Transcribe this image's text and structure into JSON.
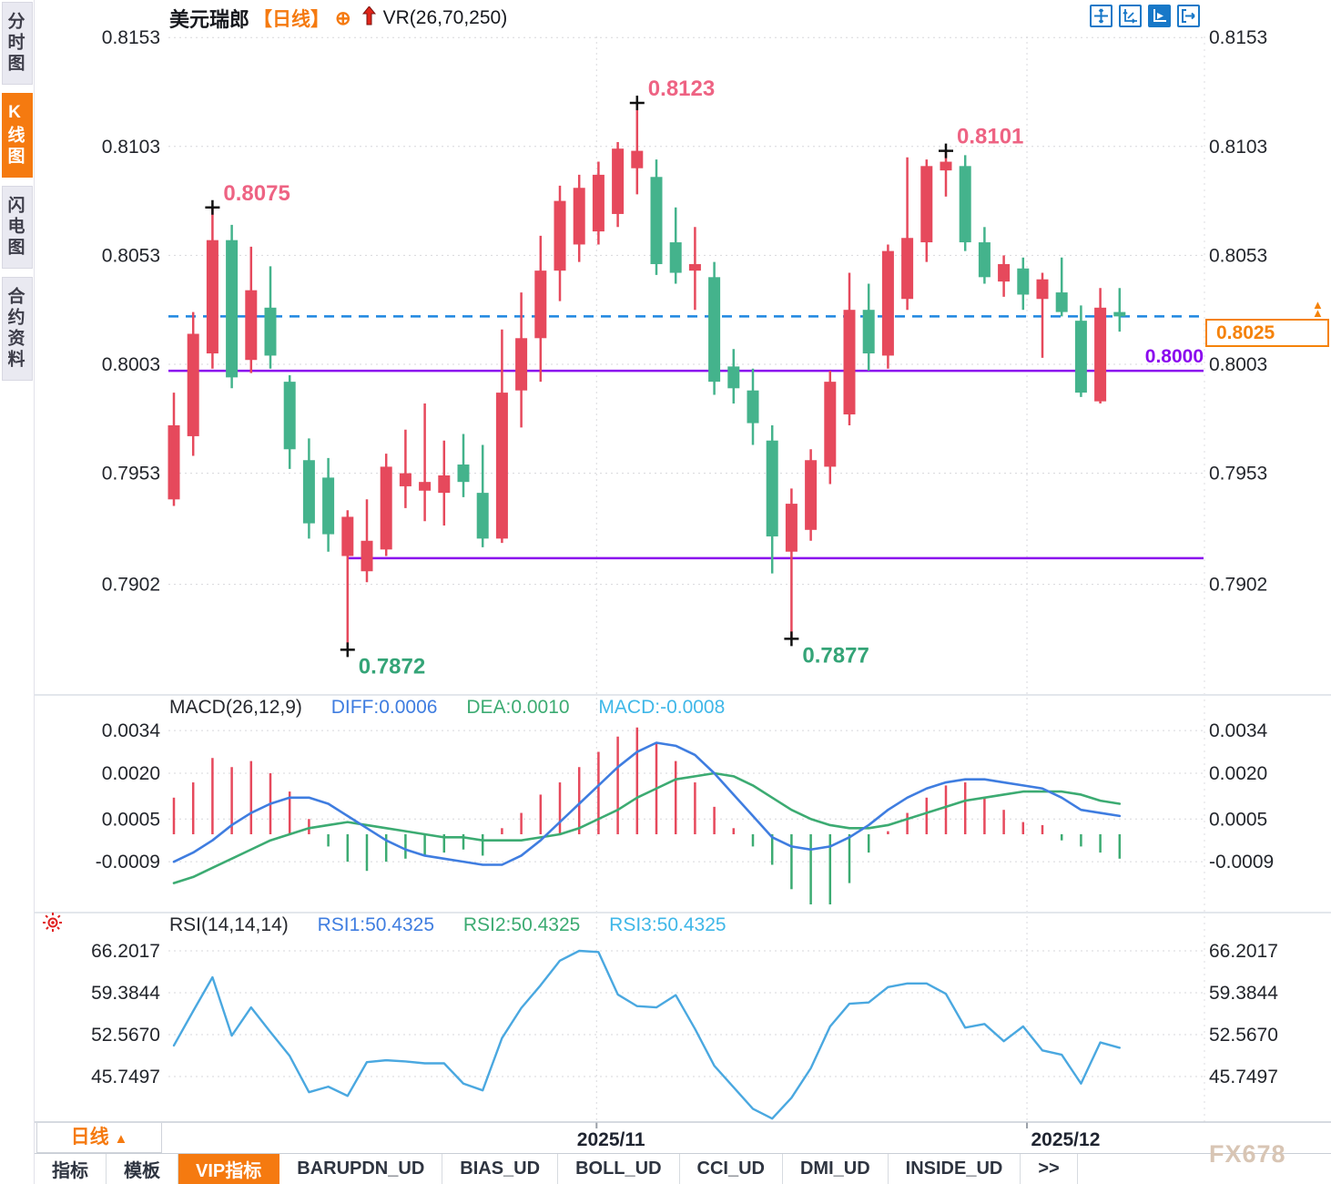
{
  "app": {
    "symbol": "美元瑞郎",
    "period_tag": "【日线】",
    "overlay_indicator": "VR(26,70,250)"
  },
  "sidebar": {
    "items": [
      {
        "label": "分时图",
        "active": false
      },
      {
        "label": "K线图",
        "active": true
      },
      {
        "label": "闪电图",
        "active": false
      },
      {
        "label": "合约资料",
        "active": false
      }
    ]
  },
  "toolbar_icons": [
    {
      "name": "crosshair-move-icon",
      "active": false
    },
    {
      "name": "axis-scale-icon",
      "active": false
    },
    {
      "name": "axis-play-icon",
      "active": true
    },
    {
      "name": "goto-latest-icon",
      "active": false
    }
  ],
  "colors": {
    "up": "#e6495c",
    "down": "#44b38c",
    "current_line": "#1e86e0",
    "support": "#8a06ee",
    "accent_orange": "#f5820a",
    "macd_diff": "#3f7de0",
    "macd_dea": "#3cab72",
    "macd_hist_pos": "#e6495c",
    "macd_hist_neg": "#3cab72",
    "rsi_line": "#4aa8e0",
    "axis_text": "#23262c",
    "high_label": "#ee6383",
    "low_label": "#34a477"
  },
  "chart_data": {
    "type": "candlestick",
    "title": "美元瑞郎 日线 (USD/CHF daily)",
    "main": {
      "y_axis_labels": [
        "0.8153",
        "0.8103",
        "0.8053",
        "0.8003",
        "0.7953",
        "0.7902"
      ],
      "y_axis_values": [
        0.8153,
        0.8103,
        0.8053,
        0.8003,
        0.7953,
        0.7902
      ],
      "ohlc": [
        [
          0.7941,
          0.799,
          0.7938,
          0.7975
        ],
        [
          0.797,
          0.8027,
          0.7961,
          0.8017
        ],
        [
          0.8008,
          0.8075,
          0.8001,
          0.806
        ],
        [
          0.806,
          0.8067,
          0.7992,
          0.7997
        ],
        [
          0.8005,
          0.8057,
          0.7999,
          0.8037
        ],
        [
          0.8029,
          0.8048,
          0.8001,
          0.8007
        ],
        [
          0.7995,
          0.7998,
          0.7955,
          0.7964
        ],
        [
          0.7959,
          0.7969,
          0.7923,
          0.793
        ],
        [
          0.7951,
          0.796,
          0.7917,
          0.7925
        ],
        [
          0.7915,
          0.7936,
          0.7872,
          0.7933
        ],
        [
          0.7908,
          0.7941,
          0.7903,
          0.7922
        ],
        [
          0.7918,
          0.7962,
          0.7915,
          0.7956
        ],
        [
          0.7947,
          0.7973,
          0.7937,
          0.7953
        ],
        [
          0.7945,
          0.7985,
          0.7931,
          0.7949
        ],
        [
          0.7944,
          0.7968,
          0.7929,
          0.7952
        ],
        [
          0.7957,
          0.7971,
          0.7942,
          0.7949
        ],
        [
          0.7944,
          0.7966,
          0.7919,
          0.7923
        ],
        [
          0.7923,
          0.8019,
          0.7921,
          0.799
        ],
        [
          0.7991,
          0.8036,
          0.7974,
          0.8015
        ],
        [
          0.8015,
          0.8062,
          0.7995,
          0.8046
        ],
        [
          0.8046,
          0.8085,
          0.8032,
          0.8078
        ],
        [
          0.8058,
          0.809,
          0.805,
          0.8084
        ],
        [
          0.8064,
          0.8096,
          0.8058,
          0.809
        ],
        [
          0.8072,
          0.8105,
          0.8066,
          0.8102
        ],
        [
          0.8093,
          0.8123,
          0.8081,
          0.8101
        ],
        [
          0.8089,
          0.8097,
          0.8044,
          0.8049
        ],
        [
          0.8059,
          0.8075,
          0.804,
          0.8045
        ],
        [
          0.8046,
          0.8066,
          0.8028,
          0.8049
        ],
        [
          0.8043,
          0.805,
          0.7989,
          0.7995
        ],
        [
          0.8002,
          0.801,
          0.7985,
          0.7992
        ],
        [
          0.7991,
          0.8001,
          0.7966,
          0.7976
        ],
        [
          0.7968,
          0.7975,
          0.7907,
          0.7924
        ],
        [
          0.7917,
          0.7946,
          0.7877,
          0.7939
        ],
        [
          0.7927,
          0.7964,
          0.7922,
          0.7959
        ],
        [
          0.7956,
          0.8,
          0.7948,
          0.7995
        ],
        [
          0.798,
          0.8045,
          0.7975,
          0.8028
        ],
        [
          0.8028,
          0.804,
          0.8,
          0.8008
        ],
        [
          0.8007,
          0.8058,
          0.8001,
          0.8055
        ],
        [
          0.8033,
          0.8098,
          0.8028,
          0.8061
        ],
        [
          0.8059,
          0.8097,
          0.805,
          0.8094
        ],
        [
          0.8092,
          0.8101,
          0.808,
          0.8096
        ],
        [
          0.8094,
          0.8099,
          0.8055,
          0.8059
        ],
        [
          0.8059,
          0.8066,
          0.804,
          0.8043
        ],
        [
          0.8041,
          0.8053,
          0.8034,
          0.8049
        ],
        [
          0.8047,
          0.8052,
          0.8028,
          0.8035
        ],
        [
          0.8033,
          0.8045,
          0.8006,
          0.8042
        ],
        [
          0.8036,
          0.8052,
          0.8025,
          0.8027
        ],
        [
          0.8023,
          0.803,
          0.7988,
          0.799
        ],
        [
          0.7986,
          0.8038,
          0.7985,
          0.8029
        ],
        [
          0.8027,
          0.8038,
          0.8018,
          0.8025
        ]
      ],
      "annotations": {
        "highs": [
          {
            "index": 2,
            "label": "0.8075",
            "value": 0.8075
          },
          {
            "index": 24,
            "label": "0.8123",
            "value": 0.8123
          },
          {
            "index": 40,
            "label": "0.8101",
            "value": 0.8101
          }
        ],
        "lows": [
          {
            "index": 9,
            "label": "0.7872",
            "value": 0.7872
          },
          {
            "index": 32,
            "label": "0.7877",
            "value": 0.7877
          }
        ]
      },
      "lines": {
        "current_price": {
          "value": 0.8025,
          "label": "0.8025",
          "style": "dashed-blue"
        },
        "support1": {
          "value": 0.8,
          "label": "0.8000",
          "style": "solid-purple",
          "from_index": 0
        },
        "support2": {
          "value": 0.7914,
          "label": "",
          "style": "solid-purple",
          "from_index": 9
        }
      },
      "axis_close_label": "0.8003"
    },
    "macd": {
      "title": "MACD(26,12,9)",
      "diff_label": "DIFF:0.0006",
      "dea_label": "DEA:0.0010",
      "macd_label": "MACD:-0.0008",
      "y_axis_labels": [
        "0.0034",
        "0.0020",
        "0.0005",
        "-0.0009"
      ],
      "y_axis_values": [
        0.0034,
        0.002,
        0.0005,
        -0.0009
      ],
      "hist": [
        0.0012,
        0.0017,
        0.0025,
        0.0022,
        0.0024,
        0.002,
        0.0014,
        0.0005,
        -0.0004,
        -0.0009,
        -0.0012,
        -0.0009,
        -0.0008,
        -0.0007,
        -0.0006,
        -0.0005,
        -0.0007,
        0.0002,
        0.0007,
        0.0013,
        0.0017,
        0.0022,
        0.0027,
        0.0032,
        0.0035,
        0.003,
        0.0024,
        0.0017,
        0.0009,
        0.0002,
        -0.0004,
        -0.001,
        -0.0018,
        -0.0023,
        -0.0023,
        -0.0016,
        -0.0006,
        0.0001,
        0.0007,
        0.0012,
        0.0016,
        0.0017,
        0.0012,
        0.0008,
        0.0004,
        0.0003,
        -0.0002,
        -0.0004,
        -0.0006,
        -0.0008
      ],
      "diff": [
        -0.0009,
        -0.0006,
        -0.0002,
        0.0003,
        0.0007,
        0.001,
        0.0012,
        0.0012,
        0.001,
        0.0006,
        0.0002,
        -0.0002,
        -0.0005,
        -0.0007,
        -0.0008,
        -0.0009,
        -0.001,
        -0.001,
        -0.0007,
        -0.0002,
        0.0004,
        0.001,
        0.0016,
        0.0022,
        0.0027,
        0.003,
        0.0029,
        0.0026,
        0.002,
        0.0013,
        0.0006,
        -0.0001,
        -0.0004,
        -0.0005,
        -0.0004,
        -0.0001,
        0.0003,
        0.0008,
        0.0012,
        0.0015,
        0.0017,
        0.0018,
        0.0018,
        0.0017,
        0.0016,
        0.0015,
        0.0012,
        0.0008,
        0.0007,
        0.0006
      ],
      "dea": [
        -0.0016,
        -0.0014,
        -0.0011,
        -0.0008,
        -0.0005,
        -0.0002,
        0.0,
        0.0002,
        0.0003,
        0.0004,
        0.0003,
        0.0002,
        0.0001,
        0.0,
        -0.0001,
        -0.0001,
        -0.0002,
        -0.0002,
        -0.0002,
        -0.0001,
        0.0,
        0.0002,
        0.0005,
        0.0008,
        0.0012,
        0.0015,
        0.0018,
        0.0019,
        0.002,
        0.0019,
        0.0016,
        0.0012,
        0.0008,
        0.0005,
        0.0003,
        0.0002,
        0.0002,
        0.0003,
        0.0005,
        0.0007,
        0.0009,
        0.0011,
        0.0012,
        0.0013,
        0.0014,
        0.0014,
        0.0014,
        0.0013,
        0.0011,
        0.001
      ]
    },
    "rsi": {
      "title": "RSI(14,14,14)",
      "rsi1_label": "RSI1:50.4325",
      "rsi2_label": "RSI2:50.4325",
      "rsi3_label": "RSI3:50.4325",
      "y_axis_labels": [
        "66.2017",
        "59.3844",
        "52.5670",
        "45.7497"
      ],
      "y_axis_values": [
        66.2017,
        59.3844,
        52.567,
        45.7497
      ],
      "values": [
        50.8,
        56.4,
        61.9,
        52.4,
        57.0,
        53.0,
        49.1,
        43.2,
        44.1,
        42.6,
        48.1,
        48.4,
        48.2,
        47.9,
        47.9,
        44.6,
        43.5,
        52.0,
        56.9,
        60.6,
        64.6,
        66.2,
        66.0,
        59.1,
        57.2,
        57.0,
        59.0,
        53.5,
        47.5,
        44.0,
        40.5,
        38.9,
        42.3,
        47.1,
        53.9,
        57.6,
        57.8,
        60.3,
        60.9,
        60.9,
        59.2,
        53.7,
        54.3,
        51.5,
        53.9,
        50.0,
        49.3,
        44.6,
        51.3,
        50.43
      ]
    },
    "x_axis": {
      "months": [
        {
          "label": "2025/11",
          "grid_index": 21.9,
          "label_index": 22.65
        },
        {
          "label": "2025/12",
          "grid_index": 44.2,
          "label_index": 46.2
        }
      ]
    },
    "legend_position": "top-left",
    "grid": true
  },
  "bottom": {
    "period_button": "日线",
    "period_tri": "▲",
    "tabs": [
      {
        "label": "指标",
        "active": false
      },
      {
        "label": "模板",
        "active": false
      },
      {
        "label": "VIP指标",
        "active": true
      },
      {
        "label": "BARUPDN_UD",
        "active": false
      },
      {
        "label": "BIAS_UD",
        "active": false
      },
      {
        "label": "BOLL_UD",
        "active": false
      },
      {
        "label": "CCI_UD",
        "active": false
      },
      {
        "label": "DMI_UD",
        "active": false
      },
      {
        "label": "INSIDE_UD",
        "active": false
      },
      {
        "label": ">>",
        "active": false
      }
    ],
    "watermark": "FX678"
  }
}
